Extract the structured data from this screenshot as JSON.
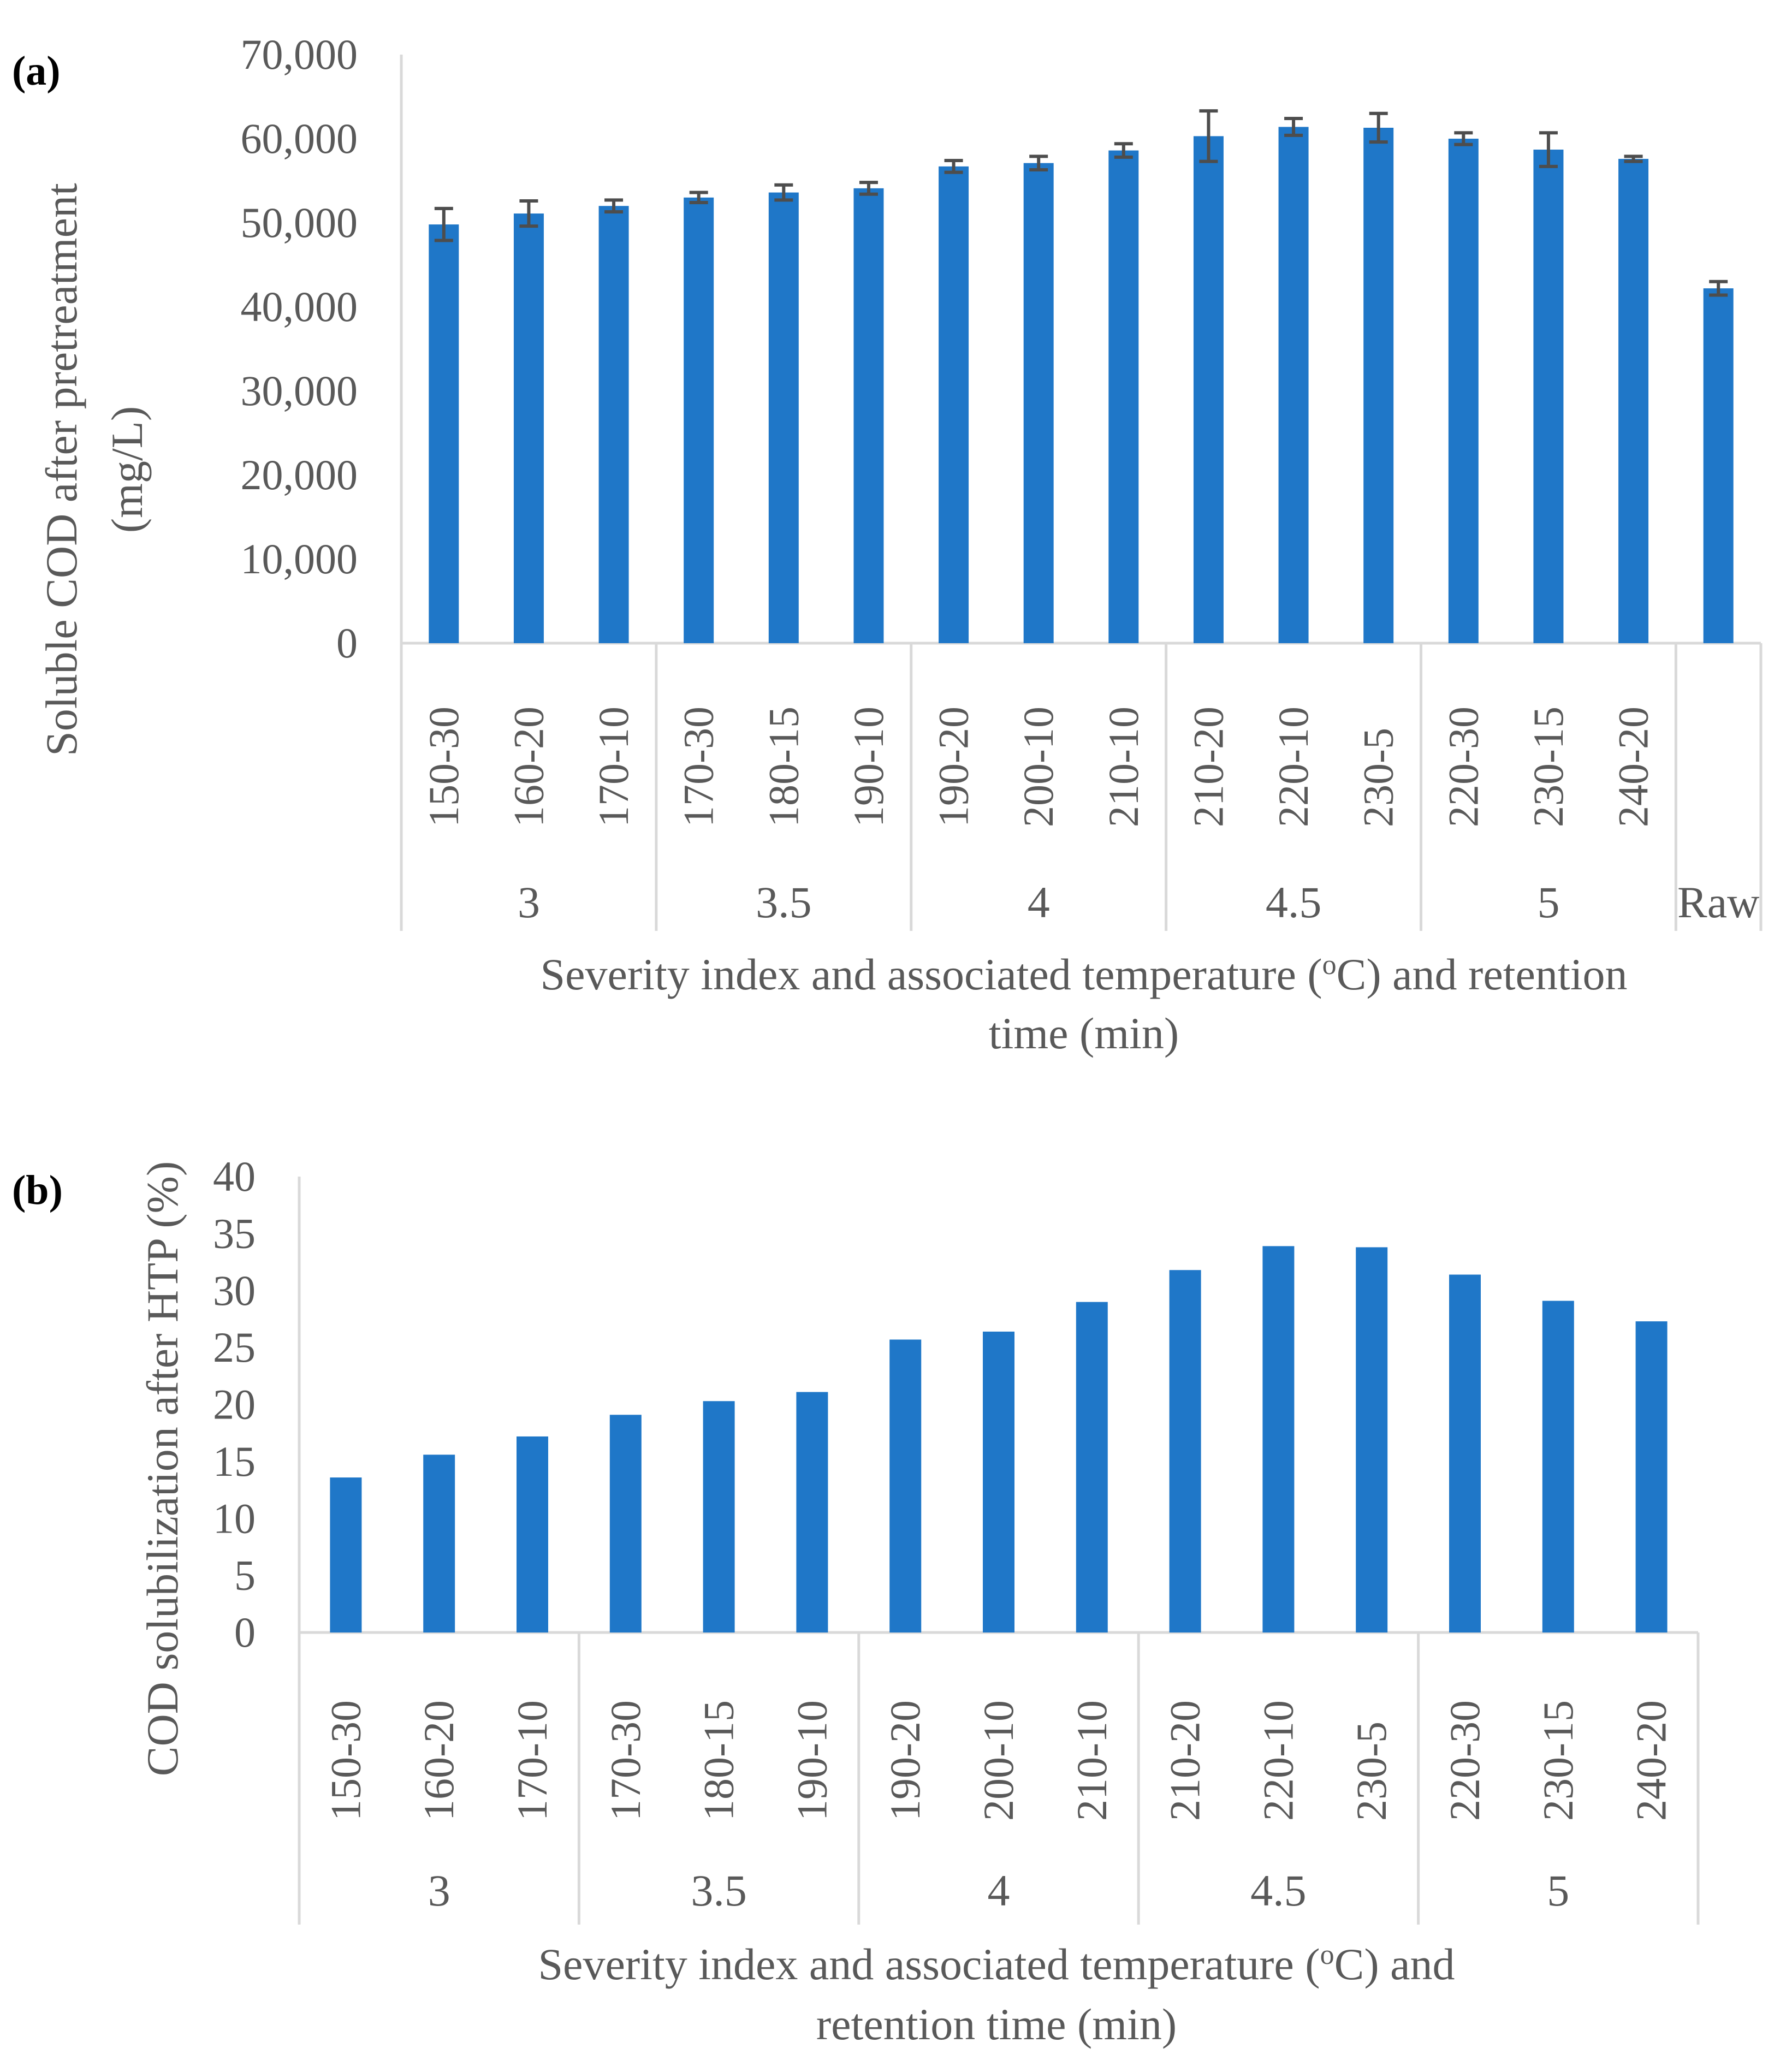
{
  "colors": {
    "bar": "#1f77c8",
    "axis": "#d9d9d9",
    "text": "#595959",
    "error": "#4d4d4d"
  },
  "chart_data": [
    {
      "panel_label": "(a)",
      "type": "bar",
      "categories": [
        "150-30",
        "160-20",
        "170-10",
        "170-30",
        "180-15",
        "190-10",
        "190-20",
        "200-10",
        "210-10",
        "210-20",
        "220-10",
        "230-5",
        "220-30",
        "230-15",
        "240-20",
        ""
      ],
      "groups": [
        {
          "label": "3",
          "count": 3
        },
        {
          "label": "3.5",
          "count": 3
        },
        {
          "label": "4",
          "count": 3
        },
        {
          "label": "4.5",
          "count": 3
        },
        {
          "label": "5",
          "count": 3
        },
        {
          "label": "Raw",
          "count": 1
        }
      ],
      "values": [
        49800,
        51100,
        52000,
        53000,
        53600,
        54100,
        56700,
        57100,
        58600,
        60300,
        61400,
        61300,
        60000,
        58700,
        57600,
        42200
      ],
      "errors": [
        1900,
        1500,
        700,
        600,
        900,
        700,
        700,
        800,
        800,
        3000,
        1000,
        1700,
        700,
        2000,
        300,
        800
      ],
      "yticks": [
        "0",
        "10,000",
        "20,000",
        "30,000",
        "40,000",
        "50,000",
        "60,000",
        "70,000"
      ],
      "ylim": [
        0,
        70000
      ],
      "ylabel_lines": [
        "Soluble COD  after  pretreatment",
        "(mg/L)"
      ],
      "xlabel_lines": [
        "Severity  index and associated temperature (",
        "o",
        "C) and retention",
        "time (min)"
      ]
    },
    {
      "panel_label": "(b)",
      "type": "bar",
      "categories": [
        "150-30",
        "160-20",
        "170-10",
        "170-30",
        "180-15",
        "190-10",
        "190-20",
        "200-10",
        "210-10",
        "210-20",
        "220-10",
        "230-5",
        "220-30",
        "230-15",
        "240-20"
      ],
      "groups": [
        {
          "label": "3",
          "count": 3
        },
        {
          "label": "3.5",
          "count": 3
        },
        {
          "label": "4",
          "count": 3
        },
        {
          "label": "4.5",
          "count": 3
        },
        {
          "label": "5",
          "count": 3
        }
      ],
      "values": [
        13.6,
        15.6,
        17.2,
        19.1,
        20.3,
        21.1,
        25.7,
        26.4,
        29.0,
        31.8,
        33.9,
        33.8,
        31.4,
        29.1,
        27.3
      ],
      "yticks": [
        "0",
        "5",
        "10",
        "15",
        "20",
        "25",
        "30",
        "35",
        "40"
      ],
      "ylim": [
        0,
        40
      ],
      "ylabel_lines": [
        "COD solubilization after HTP (%)"
      ],
      "xlabel_lines": [
        "Severity  index and associated temperature (",
        "o",
        "C) and",
        "retention time (min)"
      ]
    }
  ]
}
